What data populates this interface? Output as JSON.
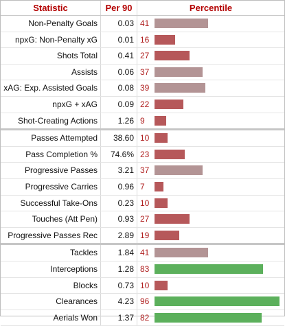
{
  "header": {
    "statistic": "Statistic",
    "per90": "Per 90",
    "percentile": "Percentile"
  },
  "groups": [
    {
      "rows": [
        {
          "stat": "Non-Penalty Goals",
          "per90": "0.03",
          "percentile": 41
        },
        {
          "stat": "npxG: Non-Penalty xG",
          "per90": "0.01",
          "percentile": 16
        },
        {
          "stat": "Shots Total",
          "per90": "0.41",
          "percentile": 27
        },
        {
          "stat": "Assists",
          "per90": "0.06",
          "percentile": 37
        },
        {
          "stat": "xAG: Exp. Assisted Goals",
          "per90": "0.08",
          "percentile": 39
        },
        {
          "stat": "npxG + xAG",
          "per90": "0.09",
          "percentile": 22
        },
        {
          "stat": "Shot-Creating Actions",
          "per90": "1.26",
          "percentile": 9
        }
      ]
    },
    {
      "rows": [
        {
          "stat": "Passes Attempted",
          "per90": "38.60",
          "percentile": 10
        },
        {
          "stat": "Pass Completion %",
          "per90": "74.6%",
          "percentile": 23
        },
        {
          "stat": "Progressive Passes",
          "per90": "3.21",
          "percentile": 37
        },
        {
          "stat": "Progressive Carries",
          "per90": "0.96",
          "percentile": 7
        },
        {
          "stat": "Successful Take-Ons",
          "per90": "0.23",
          "percentile": 10
        },
        {
          "stat": "Touches (Att Pen)",
          "per90": "0.93",
          "percentile": 27
        },
        {
          "stat": "Progressive Passes Rec",
          "per90": "2.89",
          "percentile": 19
        }
      ]
    },
    {
      "rows": [
        {
          "stat": "Tackles",
          "per90": "1.84",
          "percentile": 41
        },
        {
          "stat": "Interceptions",
          "per90": "1.28",
          "percentile": 83
        },
        {
          "stat": "Blocks",
          "per90": "0.73",
          "percentile": 10
        },
        {
          "stat": "Clearances",
          "per90": "4.23",
          "percentile": 96
        },
        {
          "stat": "Aerials Won",
          "per90": "1.37",
          "percentile": 82
        }
      ]
    }
  ],
  "colors": {
    "low": "#b6585a",
    "mid": "#b39495",
    "high": "#5cb05c",
    "text_red": "#b02020"
  }
}
